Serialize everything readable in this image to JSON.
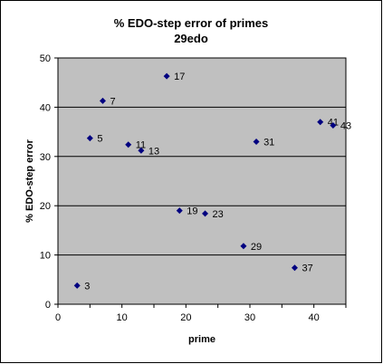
{
  "chart_data": {
    "type": "scatter",
    "title": "% EDO-step error of primes",
    "subtitle": "29edo",
    "xlabel": "prime",
    "ylabel": "% EDO-step error",
    "xlim": [
      0,
      45
    ],
    "ylim": [
      0,
      50
    ],
    "xticks": [
      "0",
      "10",
      "20",
      "30",
      "40"
    ],
    "yticks": [
      "0",
      "10",
      "20",
      "30",
      "40",
      "50"
    ],
    "grid": "horizontal",
    "legend": "none",
    "colors": {
      "plot_background": "#c0c0c0",
      "marker": "#000080",
      "grid": "#000000",
      "frame": "#000000"
    },
    "series": [
      {
        "points": [
          {
            "x": 3,
            "y": 3.8,
            "label": "3"
          },
          {
            "x": 5,
            "y": 33.7,
            "label": "5"
          },
          {
            "x": 7,
            "y": 41.3,
            "label": "7"
          },
          {
            "x": 11,
            "y": 32.4,
            "label": "11"
          },
          {
            "x": 13,
            "y": 31.2,
            "label": "13"
          },
          {
            "x": 17,
            "y": 46.3,
            "label": "17"
          },
          {
            "x": 19,
            "y": 19.0,
            "label": "19"
          },
          {
            "x": 23,
            "y": 18.4,
            "label": "23"
          },
          {
            "x": 29,
            "y": 11.8,
            "label": "29"
          },
          {
            "x": 31,
            "y": 33.0,
            "label": "31"
          },
          {
            "x": 37,
            "y": 7.4,
            "label": "37"
          },
          {
            "x": 41,
            "y": 37.0,
            "label": "41"
          },
          {
            "x": 43,
            "y": 36.3,
            "label": "43"
          }
        ]
      }
    ]
  }
}
